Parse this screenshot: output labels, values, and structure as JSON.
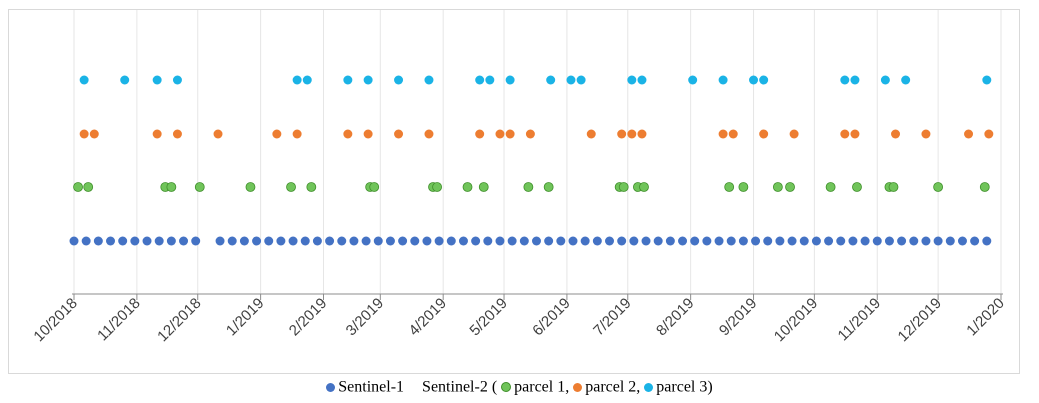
{
  "chart_data": {
    "type": "scatter",
    "title": "",
    "xlabel": "",
    "ylabel": "",
    "x_type": "date",
    "xlim": [
      "2018-10-01",
      "2020-01-01"
    ],
    "x_ticks": [
      "10/2018",
      "11/2018",
      "12/2018",
      "1/2019",
      "2/2019",
      "3/2019",
      "4/2019",
      "5/2019",
      "6/2019",
      "7/2019",
      "8/2019",
      "9/2019",
      "10/2019",
      "11/2019",
      "12/2019",
      "1/2020"
    ],
    "grid": "vertical",
    "legend_position": "bottom",
    "series": [
      {
        "name": "Sentinel-1",
        "color": "#4472c4",
        "row": 1,
        "x": [
          "2018-10-01",
          "2018-10-07",
          "2018-10-13",
          "2018-10-19",
          "2018-10-25",
          "2018-10-31",
          "2018-11-06",
          "2018-11-12",
          "2018-11-18",
          "2018-11-24",
          "2018-11-30",
          "2018-12-12",
          "2018-12-18",
          "2018-12-24",
          "2018-12-30",
          "2019-01-05",
          "2019-01-11",
          "2019-01-17",
          "2019-01-23",
          "2019-01-29",
          "2019-02-04",
          "2019-02-10",
          "2019-02-16",
          "2019-02-22",
          "2019-02-28",
          "2019-03-06",
          "2019-03-12",
          "2019-03-18",
          "2019-03-24",
          "2019-03-30",
          "2019-04-05",
          "2019-04-11",
          "2019-04-17",
          "2019-04-23",
          "2019-04-29",
          "2019-05-05",
          "2019-05-11",
          "2019-05-17",
          "2019-05-23",
          "2019-05-29",
          "2019-06-04",
          "2019-06-10",
          "2019-06-16",
          "2019-06-22",
          "2019-06-28",
          "2019-07-04",
          "2019-07-10",
          "2019-07-16",
          "2019-07-22",
          "2019-07-28",
          "2019-08-03",
          "2019-08-09",
          "2019-08-15",
          "2019-08-21",
          "2019-08-27",
          "2019-09-02",
          "2019-09-08",
          "2019-09-14",
          "2019-09-20",
          "2019-09-26",
          "2019-10-02",
          "2019-10-08",
          "2019-10-14",
          "2019-10-20",
          "2019-10-26",
          "2019-11-01",
          "2019-11-07",
          "2019-11-13",
          "2019-11-19",
          "2019-11-25",
          "2019-12-01",
          "2019-12-07",
          "2019-12-13",
          "2019-12-19",
          "2019-12-25"
        ]
      },
      {
        "name": "parcel 1",
        "color": "#70c45a",
        "row": 2,
        "x": [
          "2018-10-03",
          "2018-10-08",
          "2018-11-15",
          "2018-11-18",
          "2018-12-02",
          "2018-12-27",
          "2019-01-16",
          "2019-01-26",
          "2019-02-24",
          "2019-02-26",
          "2019-03-27",
          "2019-03-29",
          "2019-04-13",
          "2019-04-21",
          "2019-05-13",
          "2019-05-23",
          "2019-06-27",
          "2019-06-29",
          "2019-07-06",
          "2019-07-09",
          "2019-08-20",
          "2019-08-27",
          "2019-09-13",
          "2019-09-19",
          "2019-10-09",
          "2019-10-22",
          "2019-11-07",
          "2019-11-09",
          "2019-12-01",
          "2019-12-24"
        ]
      },
      {
        "name": "parcel 2",
        "color": "#ed7d31",
        "row": 3,
        "x": [
          "2018-10-06",
          "2018-10-11",
          "2018-11-11",
          "2018-11-21",
          "2018-12-11",
          "2019-01-09",
          "2019-01-19",
          "2019-02-13",
          "2019-02-23",
          "2019-03-10",
          "2019-03-25",
          "2019-04-19",
          "2019-04-29",
          "2019-05-04",
          "2019-05-14",
          "2019-06-13",
          "2019-06-28",
          "2019-07-03",
          "2019-07-08",
          "2019-08-17",
          "2019-08-22",
          "2019-09-06",
          "2019-09-21",
          "2019-10-16",
          "2019-10-21",
          "2019-11-10",
          "2019-11-25",
          "2019-12-16",
          "2019-12-26"
        ]
      },
      {
        "name": "parcel 3",
        "color": "#1ab3e6",
        "row": 4,
        "x": [
          "2018-10-06",
          "2018-10-26",
          "2018-11-11",
          "2018-11-21",
          "2019-01-19",
          "2019-01-24",
          "2019-02-13",
          "2019-02-23",
          "2019-03-10",
          "2019-03-25",
          "2019-04-19",
          "2019-04-24",
          "2019-05-04",
          "2019-05-24",
          "2019-06-03",
          "2019-06-08",
          "2019-07-03",
          "2019-07-08",
          "2019-08-02",
          "2019-08-17",
          "2019-09-01",
          "2019-09-06",
          "2019-10-16",
          "2019-10-21",
          "2019-11-05",
          "2019-11-15",
          "2019-12-25"
        ]
      }
    ]
  },
  "legend": {
    "s1_label": "Sentinel-1",
    "s2_prefix": "Sentinel-2 (",
    "p1_label": "parcel 1,",
    "p2_label": "parcel 2,",
    "p3_label": "parcel 3)"
  }
}
